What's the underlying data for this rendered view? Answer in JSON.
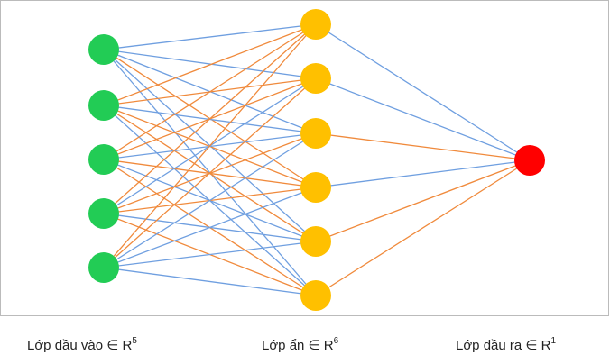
{
  "layers": [
    {
      "label": "Lớp đầu vào ∈ R",
      "sup": "5"
    },
    {
      "label": "Lớp ẩn ∈ R",
      "sup": "6"
    },
    {
      "label": "Lớp đầu ra ∈ R",
      "sup": "1"
    }
  ]
}
